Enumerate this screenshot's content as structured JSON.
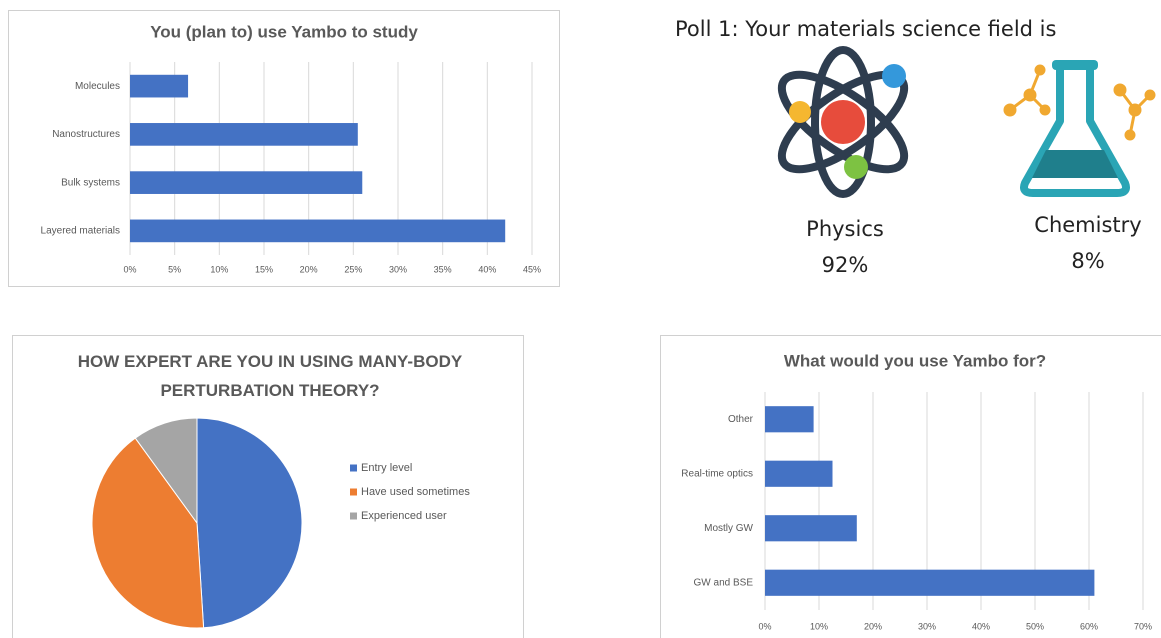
{
  "chart_data": [
    {
      "type": "hbar",
      "title": "You (plan to) use Yambo to study",
      "categories": [
        "Molecules",
        "Nanostructures",
        "Bulk systems",
        "Layered materials"
      ],
      "values": [
        6.5,
        25.5,
        26,
        42
      ],
      "color": "#4472c4",
      "xlim": [
        0,
        45
      ],
      "xticks": [
        {
          "value": 0,
          "label": "0%"
        },
        {
          "value": 5,
          "label": "5%"
        },
        {
          "value": 10,
          "label": "10%"
        },
        {
          "value": 15,
          "label": "15%"
        },
        {
          "value": 20,
          "label": "20%"
        },
        {
          "value": 25,
          "label": "25%"
        },
        {
          "value": 30,
          "label": "30%"
        },
        {
          "value": 35,
          "label": "35%"
        },
        {
          "value": 40,
          "label": "40%"
        },
        {
          "value": 45,
          "label": "45%"
        }
      ],
      "grid": true
    },
    {
      "type": "pie",
      "title": "HOW EXPERT ARE YOU IN USING MANY-BODY PERTURBATION THEORY?",
      "series": [
        {
          "name": "Entry level",
          "color": "#4472c4",
          "values": [
            49
          ]
        },
        {
          "name": "Have used sometimes",
          "color": "#ed7d31",
          "values": [
            41
          ]
        },
        {
          "name": "Experienced user",
          "color": "#a5a5a5",
          "values": [
            10
          ]
        }
      ],
      "legend": "right"
    },
    {
      "type": "hbar",
      "title": "What would you use Yambo for?",
      "categories": [
        "Other",
        "Real-time optics",
        "Mostly GW",
        "GW and BSE"
      ],
      "values": [
        9,
        12.5,
        17,
        61
      ],
      "color": "#4472c4",
      "xlim": [
        0,
        70
      ],
      "xticks": [
        {
          "value": 0,
          "label": "0%"
        },
        {
          "value": 10,
          "label": "10%"
        },
        {
          "value": 20,
          "label": "20%"
        },
        {
          "value": 30,
          "label": "30%"
        },
        {
          "value": 40,
          "label": "40%"
        },
        {
          "value": 50,
          "label": "50%"
        },
        {
          "value": 60,
          "label": "60%"
        },
        {
          "value": 70,
          "label": "70%"
        }
      ],
      "grid": true
    }
  ],
  "poll": {
    "title": "Poll 1: Your materials science field is",
    "options": [
      {
        "label": "Physics",
        "share": "92%"
      },
      {
        "label": "Chemistry",
        "share": "8%"
      }
    ]
  }
}
